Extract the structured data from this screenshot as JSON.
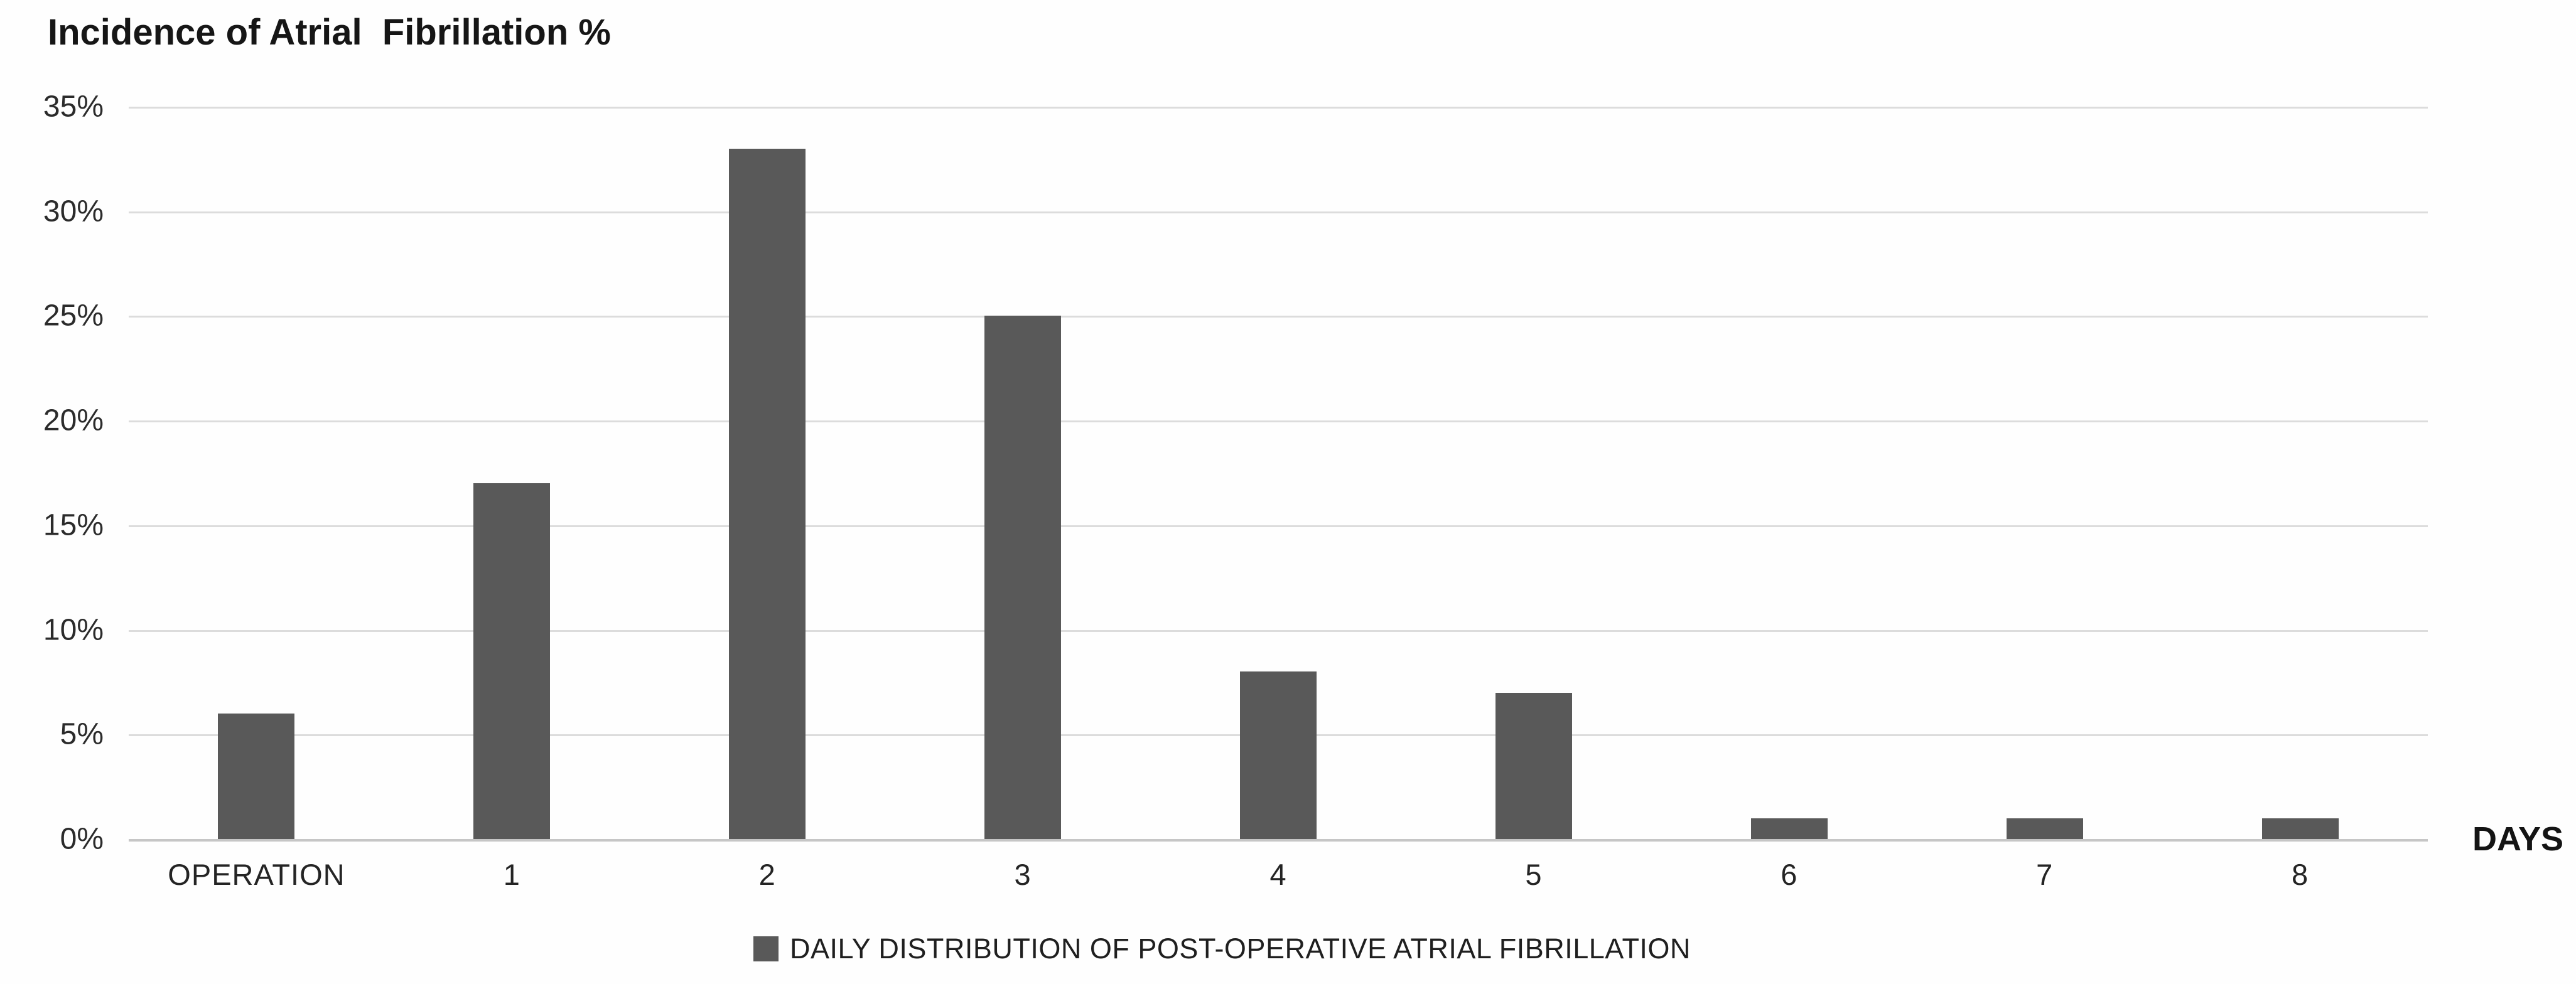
{
  "title": "Incidence of Atrial  Fibrillation %",
  "axis_label_days": "DAYS",
  "legend": {
    "label": "DAILY DISTRIBUTION OF POST-OPERATIVE ATRIAL FIBRILLATION",
    "marker": "square-icon"
  },
  "colors": {
    "bar": "#595959",
    "gridline": "#dcdcdc",
    "baseline": "#c6c6c6",
    "text": "#1f1f1f",
    "background": "#fefefe"
  },
  "chart_data": {
    "type": "bar",
    "title": "Incidence of Atrial  Fibrillation %",
    "categories": [
      "OPERATION",
      "1",
      "2",
      "3",
      "4",
      "5",
      "6",
      "7",
      "8"
    ],
    "values": [
      6,
      17,
      33,
      25,
      8,
      7,
      1,
      1,
      1
    ],
    "series_name": "DAILY DISTRIBUTION OF POST-OPERATIVE ATRIAL FIBRILLATION",
    "xlabel": "DAYS",
    "ylabel": "",
    "ylim": [
      0,
      35
    ],
    "ytick_step": 5,
    "yticks": [
      "35%",
      "30%",
      "25%",
      "20%",
      "15%",
      "10%",
      "5%",
      "0%"
    ],
    "grid": true,
    "legend_position": "bottom"
  }
}
